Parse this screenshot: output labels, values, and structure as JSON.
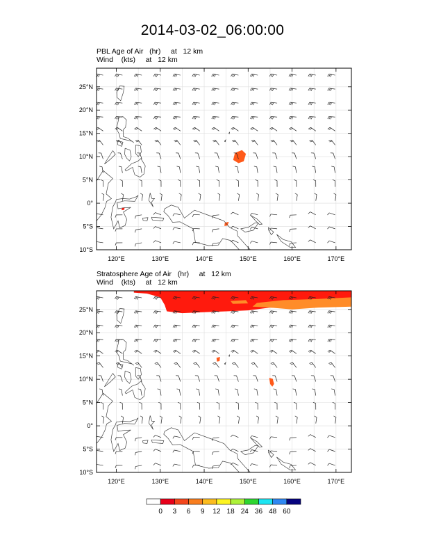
{
  "title": "2014-03-02_06:00:00",
  "panels": [
    {
      "id": "pbl",
      "line1": "PBL Age of Air   (hr)     at   12 km",
      "line2": "Wind    (kts)     at   12 km"
    },
    {
      "id": "strat",
      "line1": "Stratosphere Age of Air   (hr)     at   12 km",
      "line2": "Wind    (kts)     at   12 km"
    }
  ],
  "map": {
    "lon_range": [
      115.5,
      173.5
    ],
    "lat_range": [
      -10,
      29
    ],
    "lon_ticks": [
      {
        "value": 120,
        "label": "120°E"
      },
      {
        "value": 130,
        "label": "130°E"
      },
      {
        "value": 140,
        "label": "140°E"
      },
      {
        "value": 150,
        "label": "150°E"
      },
      {
        "value": 160,
        "label": "160°E"
      },
      {
        "value": 170,
        "label": "170°E"
      }
    ],
    "lat_ticks": [
      {
        "value": 25,
        "label": "25°N"
      },
      {
        "value": 20,
        "label": "20°N"
      },
      {
        "value": 15,
        "label": "15°N"
      },
      {
        "value": 10,
        "label": "10°N"
      },
      {
        "value": 5,
        "label": "5°N"
      },
      {
        "value": 0,
        "label": "0°"
      },
      {
        "value": -5,
        "label": "5°S"
      },
      {
        "value": -10,
        "label": "10°S"
      }
    ],
    "gridlines": true
  },
  "colorbar": {
    "labels": [
      "0",
      "3",
      "6",
      "9",
      "12",
      "18",
      "24",
      "36",
      "48",
      "60"
    ],
    "colors": [
      "#ffffff",
      "#e8001a",
      "#f4471c",
      "#f97e1f",
      "#fcbc1e",
      "#fdf421",
      "#aef239",
      "#2ed630",
      "#1de5f2",
      "#2f88f2",
      "#06037f"
    ]
  },
  "colors": {
    "age_red": "#ff1a0d",
    "age_orange": "#ff5a1a",
    "age_light_orange": "#ff8c28",
    "coast": "#404040",
    "barb": "#222222",
    "grid": "#dddddd"
  }
}
